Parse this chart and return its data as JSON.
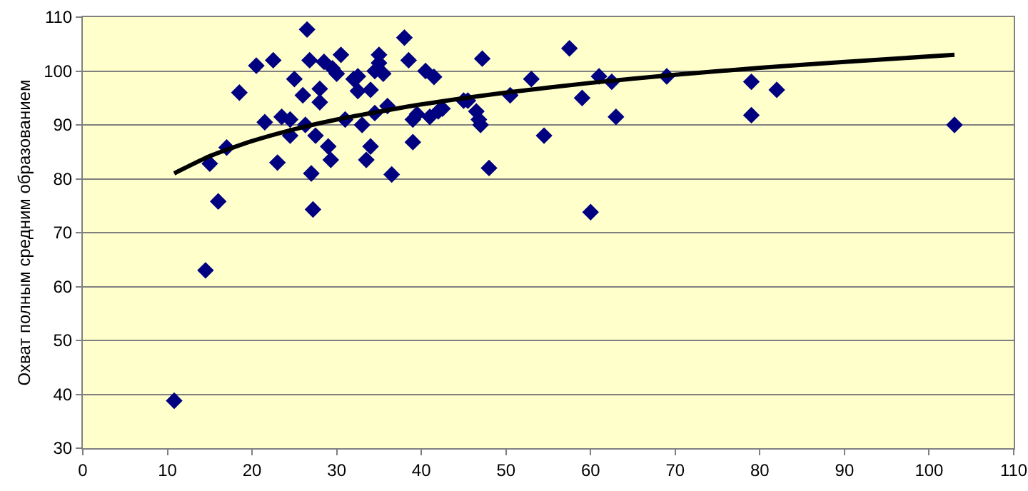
{
  "chart_data": {
    "type": "scatter",
    "ylabel": "Охват полным средним образованием",
    "xlim": [
      0,
      110
    ],
    "xticks": [
      0,
      10,
      20,
      30,
      40,
      50,
      60,
      70,
      80,
      90,
      100,
      110
    ],
    "ylim": [
      30,
      110
    ],
    "yticks": [
      30,
      40,
      50,
      60,
      70,
      80,
      90,
      100,
      110
    ],
    "grid": "y",
    "marker": "diamond",
    "series": [
      {
        "color": "#000080",
        "x": [
          10.8,
          14.5,
          15,
          16,
          17,
          18.5,
          20.5,
          21.5,
          22.5,
          23,
          23.5,
          24.5,
          24.5,
          25,
          26,
          26.3,
          26.5,
          26.8,
          27,
          27.2,
          27.5,
          28,
          28,
          28.5,
          29,
          29.3,
          29.5,
          30,
          30.5,
          31,
          32,
          32.5,
          32.5,
          33,
          33.5,
          34,
          34,
          34.5,
          34.5,
          35,
          35,
          35.5,
          36,
          36.5,
          38,
          38.5,
          39,
          39,
          39.5,
          40.5,
          41,
          41.5,
          42,
          42.5,
          45,
          45.5,
          46.5,
          46.8,
          47,
          47.2,
          48,
          50.5,
          53,
          54.5,
          57.5,
          59,
          60,
          61,
          62.5,
          63,
          69,
          79,
          79,
          82,
          103
        ],
        "values": [
          38.8,
          63,
          82.8,
          75.8,
          85.8,
          96,
          101,
          90.5,
          102,
          83,
          91.5,
          91,
          88,
          98.5,
          95.5,
          90,
          107.7,
          102,
          81,
          74.3,
          88,
          94.2,
          96.7,
          101.7,
          86,
          83.5,
          100.5,
          99.5,
          103,
          91,
          98.5,
          99,
          96.3,
          90,
          83.5,
          96.5,
          86,
          100,
          92.2,
          101.5,
          103,
          99.5,
          93.5,
          80.8,
          106.2,
          102,
          91,
          86.8,
          92,
          100,
          91.5,
          98.9,
          92.5,
          93,
          94.5,
          94.5,
          92.5,
          91,
          90,
          102.3,
          82,
          95.5,
          98.5,
          88,
          104.2,
          95,
          73.8,
          99,
          98,
          91.5,
          99,
          98,
          91.8,
          96.5,
          90
        ]
      },
      {
        "type": "line",
        "color": "#000000",
        "marker": "none",
        "x": [
          10.8,
          15,
          20,
          25,
          30,
          40,
          50,
          60,
          70,
          80,
          90,
          103
        ],
        "values": [
          81,
          84.2,
          87,
          89.2,
          91,
          93.8,
          96,
          97.8,
          99.3,
          100.6,
          101.7,
          103
        ]
      }
    ]
  }
}
